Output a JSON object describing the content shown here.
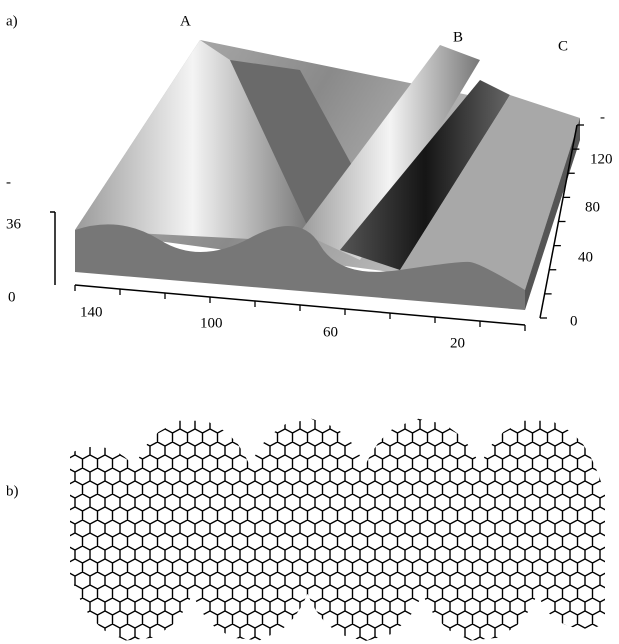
{
  "panels": [
    {
      "label": "a)",
      "peaks": [
        "A",
        "B",
        "C"
      ],
      "z_axis": {
        "ticks": [
          "-",
          36,
          0
        ]
      },
      "x_axis": {
        "ticks": [
          140,
          100,
          60,
          20
        ]
      },
      "y_axis": {
        "ticks": [
          0,
          40,
          80,
          120,
          "-"
        ]
      }
    },
    {
      "label": "b)"
    }
  ]
}
